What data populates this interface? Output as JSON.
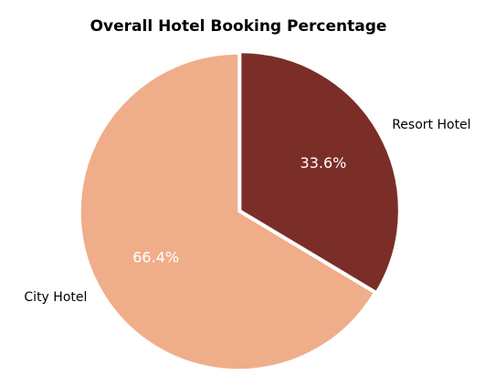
{
  "chart_data": {
    "type": "pie",
    "title": "Overall Hotel Booking Percentage",
    "categories": [
      "City Hotel",
      "Resort Hotel"
    ],
    "values": [
      66.4,
      33.6
    ],
    "value_labels": [
      "66.4%",
      "33.6%"
    ],
    "colors": [
      "#EFAE89",
      "#7B2E28"
    ],
    "exploded": [
      "Resort Hotel"
    ],
    "start_angle_deg": 90,
    "direction": "clockwise-from-top for Resort Hotel",
    "legend": "none",
    "label_placement": "outside-slice",
    "pct_label_color": "#ffffff"
  }
}
